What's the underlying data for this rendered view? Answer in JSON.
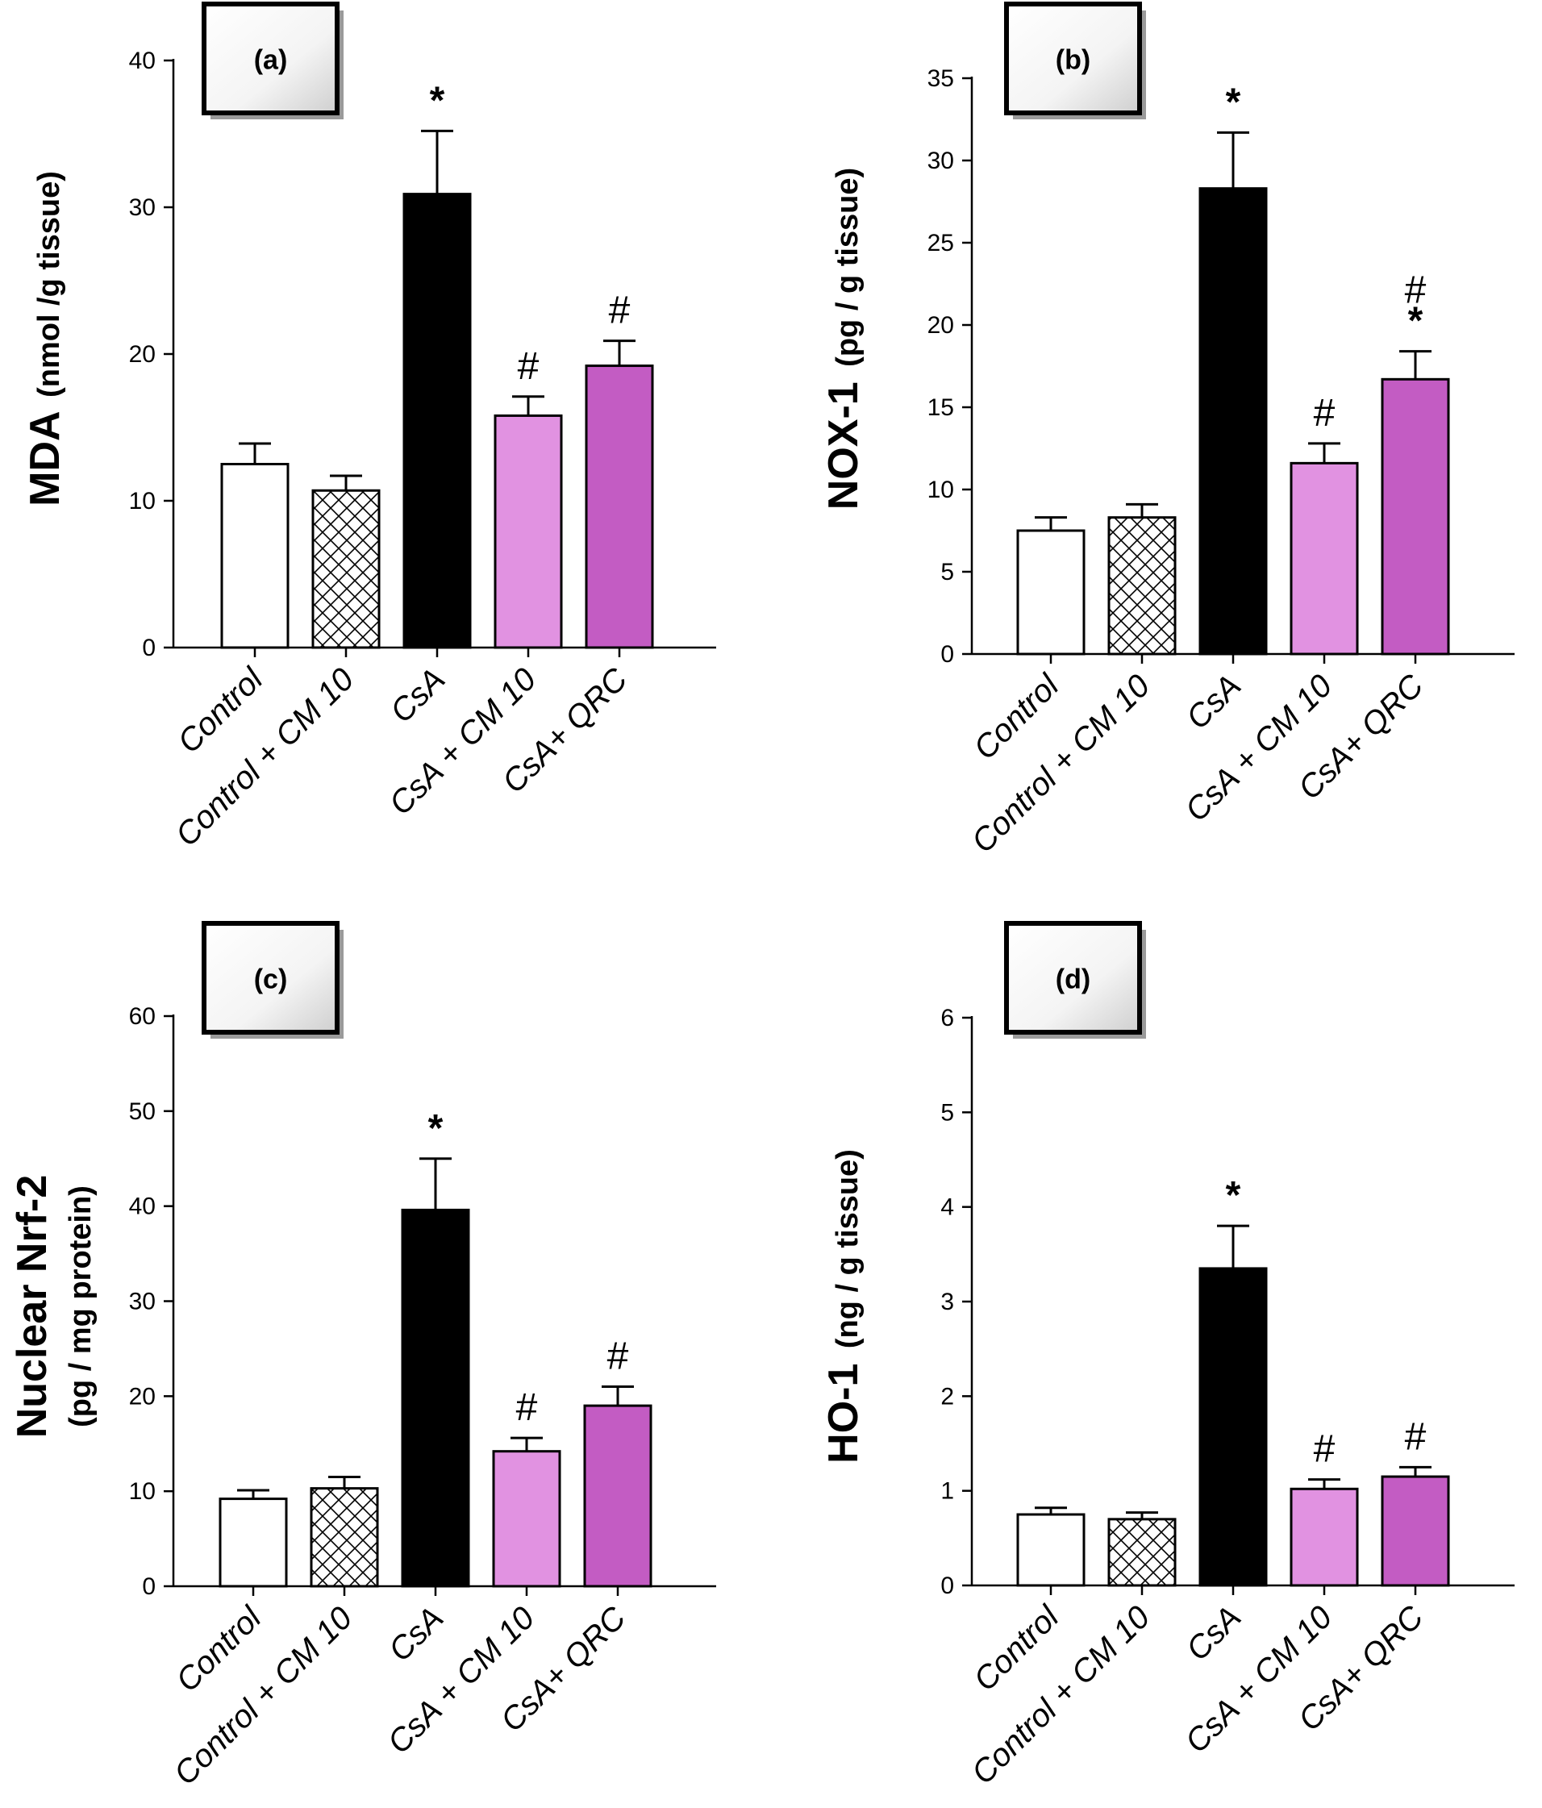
{
  "colors": {
    "Control": "#ffffff",
    "Control +  CM 10": "hatch",
    "CsA": "#000000",
    "CsA + CM 10": "#e192e1",
    "CsA+ QRC": "#c35cc3"
  },
  "chart_data": [
    {
      "type": "bar",
      "panel": "(a)",
      "categories": [
        "Control",
        "Control +  CM 10",
        "CsA",
        "CsA + CM 10",
        "CsA+ QRC"
      ],
      "values": [
        12.5,
        10.7,
        30.9,
        15.8,
        19.2
      ],
      "errors": [
        1.4,
        1.0,
        4.3,
        1.3,
        1.7
      ],
      "significance": [
        "",
        "",
        "*",
        "#",
        "#"
      ],
      "ylabel_main": "MDA",
      "ylabel_unit": "(nmol /g tissue)",
      "ylim": [
        0,
        40
      ],
      "yticks": [
        0,
        10,
        20,
        30,
        40
      ],
      "grid": false
    },
    {
      "type": "bar",
      "panel": "(b)",
      "categories": [
        "Control",
        "Control +  CM 10",
        "CsA",
        "CsA + CM 10",
        "CsA+ QRC"
      ],
      "values": [
        7.5,
        8.3,
        28.3,
        11.6,
        16.7
      ],
      "errors": [
        0.8,
        0.8,
        3.4,
        1.2,
        1.7
      ],
      "significance": [
        "",
        "",
        "*",
        "#",
        "#*"
      ],
      "ylabel_main": "NOX-1",
      "ylabel_unit": "(pg / g tissue)",
      "ylim": [
        0,
        35
      ],
      "yticks": [
        0,
        5,
        10,
        15,
        20,
        25,
        30,
        35
      ],
      "grid": false
    },
    {
      "type": "bar",
      "panel": "(c)",
      "categories": [
        "Control",
        "Control +  CM 10",
        "CsA",
        "CsA + CM 10",
        "CsA+ QRC"
      ],
      "values": [
        9.2,
        10.3,
        39.6,
        14.2,
        19.0
      ],
      "errors": [
        0.9,
        1.2,
        5.4,
        1.4,
        2.0
      ],
      "significance": [
        "",
        "",
        "*",
        "#",
        "#"
      ],
      "ylabel_main": "Nuclear Nrf-2",
      "ylabel_unit": "(pg / mg protein)",
      "ylim": [
        0,
        60
      ],
      "yticks": [
        0,
        10,
        20,
        30,
        40,
        50,
        60
      ],
      "grid": false
    },
    {
      "type": "bar",
      "panel": "(d)",
      "categories": [
        "Control",
        "Control +  CM 10",
        "CsA",
        "CsA + CM 10",
        "CsA+ QRC"
      ],
      "values": [
        0.75,
        0.7,
        3.35,
        1.02,
        1.15
      ],
      "errors": [
        0.07,
        0.07,
        0.45,
        0.1,
        0.1
      ],
      "significance": [
        "",
        "",
        "*",
        "#",
        "#"
      ],
      "ylabel_main": "HO-1",
      "ylabel_unit": "(ng / g tissue)",
      "ylim": [
        0,
        6
      ],
      "yticks": [
        0,
        1,
        2,
        3,
        4,
        5,
        6
      ],
      "grid": false
    }
  ]
}
